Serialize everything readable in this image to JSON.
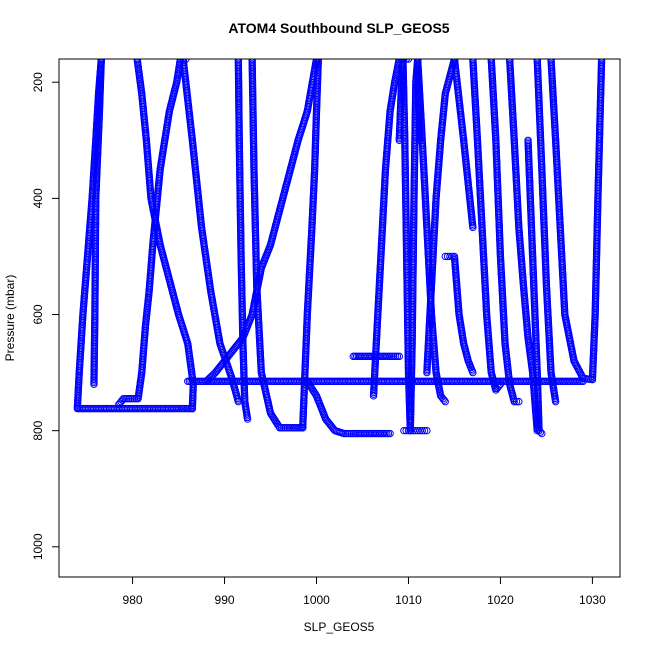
{
  "chart_data": {
    "type": "scatter",
    "title": "ATOM4 Southbound SLP_GEOS5",
    "xlabel": "SLP_GEOS5",
    "ylabel": "Pressure (mbar)",
    "xlim": [
      972,
      1033
    ],
    "ylim": [
      1052,
      160
    ],
    "y_reversed": true,
    "x_ticks": [
      980,
      990,
      1000,
      1010,
      1020,
      1030
    ],
    "y_ticks": [
      200,
      400,
      600,
      800,
      1000
    ],
    "grid": false,
    "legend": "none",
    "marker": "open-circle",
    "color": "#0000ff",
    "series": [
      {
        "x": [
          974,
          974.2,
          974.6,
          975.1,
          975.6,
          976,
          976.3,
          976.6
        ],
        "y": [
          760,
          700,
          600,
          500,
          400,
          300,
          220,
          160
        ]
      },
      {
        "x": [
          976.6,
          976.4,
          976.0,
          975.9,
          975.8
        ],
        "y": [
          160,
          250,
          400,
          600,
          720
        ]
      },
      {
        "x": [
          974,
          980,
          985,
          986.5
        ],
        "y": [
          762,
          762,
          762,
          762
        ]
      },
      {
        "x": [
          986.5,
          986.6,
          986.0,
          985.0,
          984.0,
          983.0,
          982.0,
          981.5,
          981.0,
          980.5
        ],
        "y": [
          762,
          720,
          650,
          600,
          540,
          480,
          400,
          300,
          220,
          160
        ]
      },
      {
        "x": [
          978.5,
          979,
          980,
          980.6,
          981,
          981.4,
          981.8,
          982.2,
          983,
          984,
          984.8,
          985.2,
          985.5,
          985.8
        ],
        "y": [
          755,
          745,
          745,
          745,
          700,
          620,
          560,
          480,
          350,
          250,
          200,
          160,
          160,
          160
        ]
      },
      {
        "x": [
          986,
          988,
          990,
          995,
          998,
          1000,
          1003,
          1006,
          1009,
          1012,
          1015,
          1020,
          1025,
          1029
        ],
        "y": [
          715,
          715,
          715,
          715,
          715,
          715,
          715,
          715,
          715,
          715,
          715,
          715,
          715,
          715
        ]
      },
      {
        "x": [
          985.5,
          986.5,
          987.5,
          988.5,
          989.5,
          990.8,
          991.5
        ],
        "y": [
          160,
          300,
          450,
          560,
          650,
          710,
          750
        ]
      },
      {
        "x": [
          988,
          989,
          990,
          991,
          992,
          993,
          994,
          995,
          996,
          997,
          998,
          999,
          1000
        ],
        "y": [
          715,
          700,
          680,
          660,
          640,
          600,
          520,
          480,
          420,
          360,
          300,
          250,
          160
        ]
      },
      {
        "x": [
          991.5,
          991.6,
          991.8,
          992.0,
          992.2,
          992.5
        ],
        "y": [
          160,
          300,
          500,
          650,
          750,
          780
        ]
      },
      {
        "x": [
          993,
          993.2,
          993.5,
          994,
          995,
          996,
          997,
          998.5
        ],
        "y": [
          160,
          350,
          550,
          700,
          770,
          795,
          795,
          795
        ]
      },
      {
        "x": [
          998.5,
          999,
          999.5,
          999.8,
          1000,
          1000.2
        ],
        "y": [
          795,
          600,
          450,
          350,
          250,
          160
        ]
      },
      {
        "x": [
          999,
          1000,
          1001,
          1002,
          1003,
          1004,
          1006,
          1008
        ],
        "y": [
          715,
          740,
          780,
          800,
          805,
          805,
          805,
          805
        ]
      },
      {
        "x": [
          1004,
          1006,
          1008,
          1009
        ],
        "y": [
          672,
          672,
          672,
          672
        ]
      },
      {
        "x": [
          1006.2,
          1006.5,
          1007,
          1007.5,
          1008,
          1008.5,
          1009,
          1009.5,
          1010
        ],
        "y": [
          740,
          650,
          500,
          350,
          250,
          200,
          160,
          160,
          160
        ]
      },
      {
        "x": [
          1009,
          1009.2,
          1009.4,
          1009.6,
          1009.8,
          1010,
          1010.2,
          1010.4,
          1010.6,
          1010.8,
          1011,
          1011.2
        ],
        "y": [
          300,
          220,
          160,
          300,
          500,
          700,
          800,
          650,
          400,
          200,
          160,
          300
        ]
      },
      {
        "x": [
          1009.5,
          1010,
          1010.5,
          1011,
          1011.5,
          1012
        ],
        "y": [
          800,
          800,
          800,
          800,
          800,
          800
        ]
      },
      {
        "x": [
          1011,
          1011.5,
          1012,
          1012.5,
          1013,
          1013.5,
          1014
        ],
        "y": [
          160,
          300,
          450,
          600,
          700,
          740,
          750
        ]
      },
      {
        "x": [
          1012,
          1012.5,
          1013,
          1013.5,
          1014,
          1015,
          1016,
          1017
        ],
        "y": [
          700,
          550,
          400,
          300,
          220,
          160,
          300,
          450
        ]
      },
      {
        "x": [
          1014,
          1014.5,
          1015,
          1015.5,
          1016,
          1016.5,
          1017
        ],
        "y": [
          500,
          500,
          500,
          600,
          650,
          680,
          700
        ]
      },
      {
        "x": [
          1017,
          1017.5,
          1018,
          1018.5,
          1019,
          1019.5,
          1020
        ],
        "y": [
          160,
          300,
          450,
          600,
          700,
          730,
          720
        ]
      },
      {
        "x": [
          1019,
          1019.5,
          1020,
          1020.5,
          1021,
          1021.5,
          1022
        ],
        "y": [
          160,
          300,
          500,
          650,
          720,
          750,
          750
        ]
      },
      {
        "x": [
          1021,
          1021.5,
          1022,
          1022.5,
          1023,
          1023.5,
          1024
        ],
        "y": [
          160,
          300,
          450,
          550,
          640,
          700,
          800
        ]
      },
      {
        "x": [
          1023,
          1023.5,
          1024,
          1024.2,
          1024.5
        ],
        "y": [
          300,
          500,
          700,
          800,
          805
        ]
      },
      {
        "x": [
          1024,
          1024.5,
          1025,
          1025.5,
          1026
        ],
        "y": [
          160,
          350,
          550,
          700,
          750
        ]
      },
      {
        "x": [
          1025.5,
          1026,
          1026.5,
          1027,
          1028,
          1029,
          1030
        ],
        "y": [
          160,
          300,
          450,
          600,
          680,
          710,
          712
        ]
      },
      {
        "x": [
          1030,
          1030.3,
          1030.6,
          1031
        ],
        "y": [
          712,
          600,
          400,
          160
        ]
      }
    ]
  }
}
